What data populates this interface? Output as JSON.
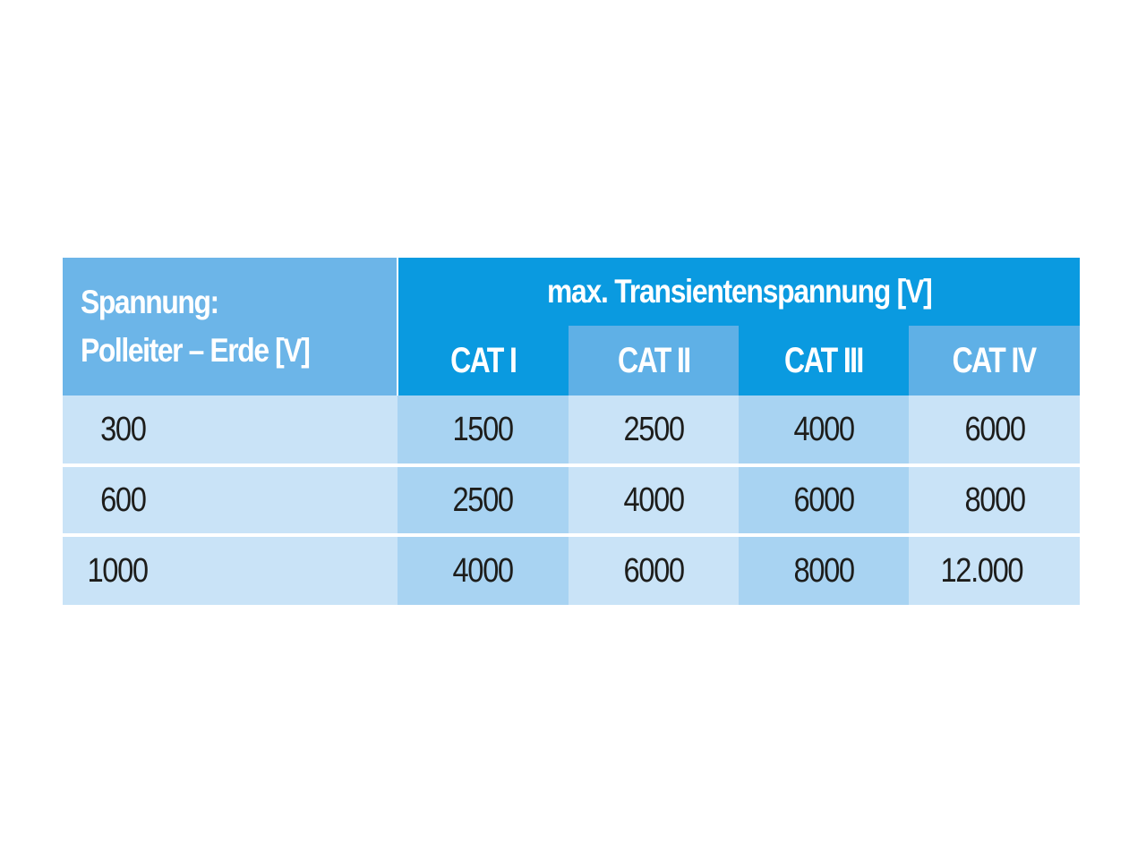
{
  "table": {
    "header": {
      "voltage_line1": "Spannung:",
      "voltage_line2": "Polleiter – Erde [V]",
      "max_transient": "max. Transientenspannung [V]",
      "categories": [
        "CAT I",
        "CAT II",
        "CAT III",
        "CAT IV"
      ]
    },
    "rows": [
      {
        "voltage": "300",
        "values": [
          "1500",
          "2500",
          "4000",
          "6000"
        ]
      },
      {
        "voltage": "600",
        "values": [
          "2500",
          "4000",
          "6000",
          "8000"
        ]
      },
      {
        "voltage": "1000",
        "values": [
          "4000",
          "6000",
          "8000",
          "12.000"
        ]
      }
    ]
  },
  "colors": {
    "header_dark": "#0a9ae0",
    "header_light": "#5fb0e6",
    "header_voltage": "#6cb5e8",
    "cell_dark": "#a8d3f2",
    "cell_light": "#c9e3f7"
  }
}
